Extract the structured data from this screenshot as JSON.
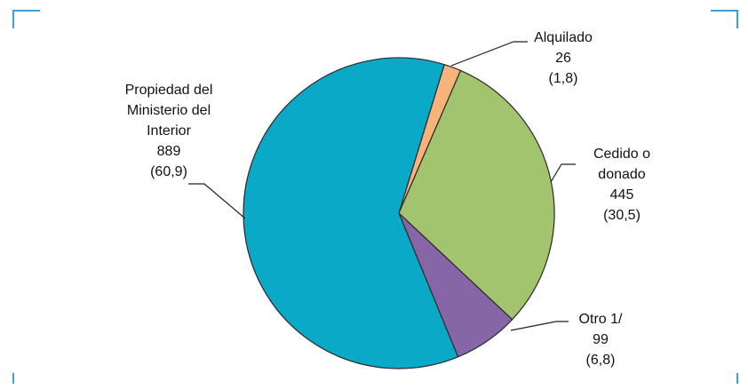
{
  "chart_data": {
    "type": "pie",
    "categories": [
      "Propiedad del Ministerio del Interior",
      "Alquilado",
      "Cedido o donado",
      "Otro 1/"
    ],
    "values": [
      889,
      26,
      445,
      99
    ],
    "percentages": [
      60.9,
      1.8,
      30.5,
      6.8
    ],
    "percentage_labels": [
      "(60,9)",
      "(1,8)",
      "(30,5)",
      "(6,8)"
    ],
    "colors": [
      "#0aa9c8",
      "#f9b27a",
      "#a3c46e",
      "#8766a8"
    ]
  }
}
